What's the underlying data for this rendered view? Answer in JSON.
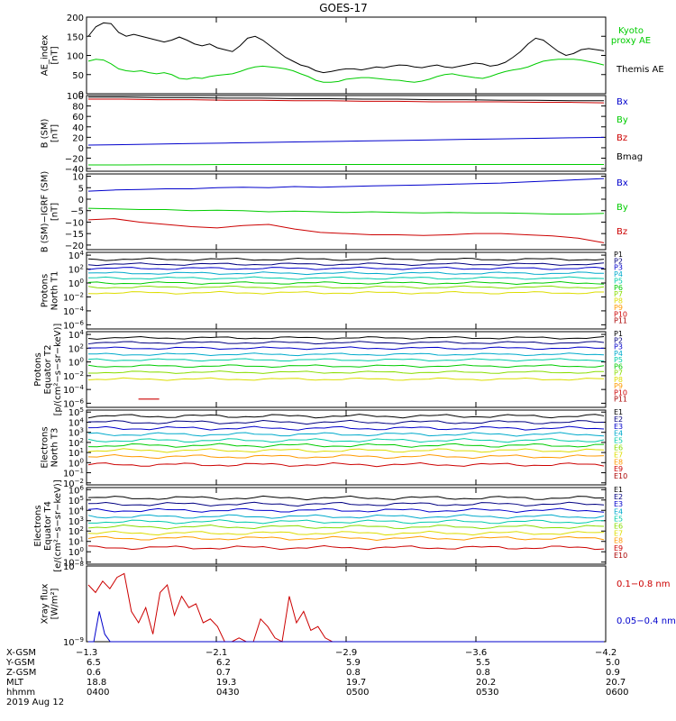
{
  "title": "GOES-17",
  "colors": {
    "black": "#000000",
    "green": "#00cc00",
    "blue": "#0000cc",
    "red": "#cc0000",
    "navy": "#000080",
    "cyan": "#00aacc",
    "teal": "#00ccaa",
    "lime": "#88dd00",
    "yellow": "#dddd00",
    "orange": "#ff9900",
    "darkred": "#aa0000"
  },
  "panels": [
    {
      "id": "ae",
      "ylabel": [
        "AE_index",
        "[nT]"
      ],
      "ticks": [
        "200",
        "150",
        "100",
        "50",
        "0"
      ],
      "ylim": [
        0,
        200
      ],
      "scale": "linear",
      "legend": [
        {
          "text": "Kyoto",
          "color": "#00cc00"
        },
        {
          "text": "proxy AE",
          "color": "#00cc00"
        },
        {
          "text": "Themis AE",
          "color": "#000000"
        }
      ],
      "series": [
        {
          "color": "#000000",
          "values": [
            150,
            175,
            185,
            183,
            160,
            150,
            155,
            150,
            145,
            140,
            135,
            140,
            148,
            140,
            130,
            125,
            130,
            120,
            115,
            110,
            125,
            145,
            150,
            140,
            125,
            110,
            95,
            85,
            75,
            70,
            60,
            55,
            58,
            62,
            65,
            65,
            62,
            66,
            70,
            68,
            72,
            75,
            74,
            70,
            68,
            72,
            75,
            70,
            68,
            72,
            76,
            80,
            78,
            72,
            75,
            82,
            95,
            110,
            130,
            145,
            140,
            125,
            110,
            100,
            105,
            115,
            118,
            115,
            112
          ]
        },
        {
          "color": "#00cc00",
          "values": [
            85,
            90,
            88,
            78,
            65,
            60,
            58,
            60,
            55,
            52,
            55,
            50,
            40,
            38,
            42,
            40,
            45,
            48,
            50,
            52,
            58,
            65,
            70,
            72,
            70,
            68,
            65,
            60,
            52,
            45,
            35,
            30,
            30,
            32,
            38,
            40,
            42,
            42,
            40,
            38,
            36,
            35,
            32,
            30,
            33,
            38,
            45,
            50,
            52,
            48,
            45,
            42,
            40,
            45,
            52,
            58,
            62,
            65,
            70,
            78,
            85,
            88,
            90,
            90,
            90,
            88,
            84,
            80,
            75
          ]
        }
      ]
    },
    {
      "id": "bsm",
      "ylabel": [
        "B (SM)",
        "[nT]"
      ],
      "ticks": [
        "100",
        "80",
        "60",
        "40",
        "20",
        "0",
        "−20",
        "−40"
      ],
      "ylim": [
        -45,
        100
      ],
      "scale": "linear",
      "legend": [
        {
          "text": "Bx",
          "color": "#0000cc"
        },
        {
          "text": "By",
          "color": "#00cc00"
        },
        {
          "text": "Bz",
          "color": "#cc0000"
        },
        {
          "text": "Bmag",
          "color": "#000000"
        }
      ],
      "series": [
        {
          "color": "#000000",
          "values": [
            97,
            97,
            96,
            96,
            95,
            95,
            94,
            94,
            93,
            93,
            92,
            92,
            91,
            91,
            90,
            90
          ]
        },
        {
          "color": "#cc0000",
          "values": [
            93,
            93,
            92,
            92,
            91,
            91,
            90,
            90,
            89,
            89,
            88,
            88,
            88,
            87,
            87,
            86
          ]
        },
        {
          "color": "#0000cc",
          "values": [
            5,
            6,
            7,
            8,
            9,
            10,
            11,
            12,
            13,
            14,
            15,
            16,
            17,
            18,
            19,
            20
          ]
        },
        {
          "color": "#00cc00",
          "values": [
            -33,
            -33,
            -32.5,
            -32.5,
            -32,
            -32,
            -32,
            -32,
            -32,
            -32,
            -32,
            -32,
            -32,
            -32,
            -32,
            -32
          ]
        }
      ]
    },
    {
      "id": "bigrf",
      "ylabel": [
        "B (SM)−IGRF (SM)",
        "[nT]"
      ],
      "ticks": [
        "10",
        "5",
        "0",
        "−5",
        "−10",
        "−15",
        "−20"
      ],
      "ylim": [
        -22,
        11
      ],
      "scale": "linear",
      "legend": [
        {
          "text": "Bx",
          "color": "#0000cc"
        },
        {
          "text": "By",
          "color": "#00cc00"
        },
        {
          "text": "Bz",
          "color": "#cc0000"
        }
      ],
      "series": [
        {
          "color": "#0000cc",
          "values": [
            3.5,
            4,
            4.2,
            4.5,
            4.5,
            5,
            5.2,
            5,
            5.5,
            5.2,
            5.5,
            5.8,
            6,
            6.2,
            6.5,
            6.8,
            7,
            7.5,
            8,
            8.5,
            9
          ]
        },
        {
          "color": "#00cc00",
          "values": [
            -4,
            -4.2,
            -4.5,
            -4.5,
            -5,
            -4.8,
            -5,
            -5.5,
            -5.2,
            -5.5,
            -5.8,
            -5.5,
            -5.8,
            -6,
            -5.8,
            -6,
            -6,
            -6.2,
            -6.5,
            -6.5,
            -6.2
          ]
        },
        {
          "color": "#cc0000",
          "values": [
            -9,
            -8.5,
            -10,
            -11,
            -12,
            -12.5,
            -11.5,
            -11,
            -13,
            -14.5,
            -15,
            -15.5,
            -15.5,
            -15.8,
            -15.5,
            -15,
            -15,
            -15.5,
            -16,
            -17,
            -19
          ]
        }
      ]
    },
    {
      "id": "pnt1",
      "ylabel": [
        "Protons",
        "North T1"
      ],
      "ticks": [
        {
          "b": "10",
          "e": "4",
          "v": 4
        },
        {
          "b": "10",
          "e": "2",
          "v": 2
        },
        {
          "b": "10",
          "e": "0",
          "v": 0
        },
        {
          "b": "10",
          "e": "−2",
          "v": -2
        },
        {
          "b": "10",
          "e": "−4",
          "v": -4
        },
        {
          "b": "10",
          "e": "−6",
          "v": -6
        }
      ],
      "ylim": [
        -6.6,
        4.4
      ],
      "scale": "log",
      "legend": [
        {
          "text": "P1",
          "color": "#000000"
        },
        {
          "text": "P2",
          "color": "#000080"
        },
        {
          "text": "P3",
          "color": "#0000cc"
        },
        {
          "text": "P4",
          "color": "#00aacc"
        },
        {
          "text": "P5",
          "color": "#00ccaa"
        },
        {
          "text": "P6",
          "color": "#00cc00"
        },
        {
          "text": "P7",
          "color": "#88dd00"
        },
        {
          "text": "P8",
          "color": "#dddd00"
        },
        {
          "text": "P9",
          "color": "#ff9900"
        },
        {
          "text": "P10",
          "color": "#cc0000"
        },
        {
          "text": "P11",
          "color": "#aa0000"
        }
      ],
      "series": [
        {
          "color": "#000000",
          "level": 3.4
        },
        {
          "color": "#000080",
          "level": 2.7
        },
        {
          "color": "#0000cc",
          "level": 2.1
        },
        {
          "color": "#00aacc",
          "level": 1.4
        },
        {
          "color": "#00ccaa",
          "level": 0.7
        },
        {
          "color": "#00cc00",
          "level": 0.0
        },
        {
          "color": "#88dd00",
          "level": -0.6
        },
        {
          "color": "#dddd00",
          "level": -1.4
        }
      ]
    },
    {
      "id": "pet2",
      "ylabel": [
        "Protons",
        "Equator T2",
        "[p/(cm²−s−sr−keV)]"
      ],
      "ticks": [
        {
          "b": "10",
          "e": "4",
          "v": 4
        },
        {
          "b": "10",
          "e": "2",
          "v": 2
        },
        {
          "b": "10",
          "e": "0",
          "v": 0
        },
        {
          "b": "10",
          "e": "−2",
          "v": -2
        },
        {
          "b": "10",
          "e": "−4",
          "v": -4
        },
        {
          "b": "10",
          "e": "−6",
          "v": -6
        }
      ],
      "ylim": [
        -6.6,
        4.4
      ],
      "scale": "log",
      "legend": [
        {
          "text": "P1",
          "color": "#000000"
        },
        {
          "text": "P2",
          "color": "#000080"
        },
        {
          "text": "P3",
          "color": "#0000cc"
        },
        {
          "text": "P4",
          "color": "#00aacc"
        },
        {
          "text": "P5",
          "color": "#00ccaa"
        },
        {
          "text": "P6",
          "color": "#00cc00"
        },
        {
          "text": "P7",
          "color": "#88dd00"
        },
        {
          "text": "P8",
          "color": "#dddd00"
        },
        {
          "text": "P9",
          "color": "#ff9900"
        },
        {
          "text": "P10",
          "color": "#cc0000"
        },
        {
          "text": "P11",
          "color": "#aa0000"
        }
      ],
      "series": [
        {
          "color": "#000000",
          "level": 3.5
        },
        {
          "color": "#000080",
          "level": 2.8
        },
        {
          "color": "#0000cc",
          "level": 2.0
        },
        {
          "color": "#00aacc",
          "level": 1.1
        },
        {
          "color": "#00ccaa",
          "level": 0.3
        },
        {
          "color": "#00cc00",
          "level": -0.6
        },
        {
          "color": "#88dd00",
          "level": -1.5
        },
        {
          "color": "#dddd00",
          "level": -2.5
        }
      ],
      "segments": [
        {
          "color": "#cc0000",
          "x0": 0.1,
          "x1": 0.14,
          "level": -5.4
        }
      ]
    },
    {
      "id": "ent3",
      "ylabel": [
        "Electrons",
        "North T3"
      ],
      "ticks": [
        {
          "b": "10",
          "e": "5",
          "v": 5
        },
        {
          "b": "10",
          "e": "4",
          "v": 4
        },
        {
          "b": "10",
          "e": "3",
          "v": 3
        },
        {
          "b": "10",
          "e": "2",
          "v": 2
        },
        {
          "b": "10",
          "e": "1",
          "v": 1
        },
        {
          "b": "10",
          "e": "0",
          "v": 0
        },
        {
          "b": "10",
          "e": "−1",
          "v": -1
        },
        {
          "b": "10",
          "e": "−2",
          "v": -2
        }
      ],
      "ylim": [
        -2.2,
        5.2
      ],
      "scale": "log",
      "legend": [
        {
          "text": "E1",
          "color": "#000000"
        },
        {
          "text": "E2",
          "color": "#000080"
        },
        {
          "text": "E3",
          "color": "#0000cc"
        },
        {
          "text": "E4",
          "color": "#00aacc"
        },
        {
          "text": "E5",
          "color": "#00ccaa"
        },
        {
          "text": "E6",
          "color": "#88dd00"
        },
        {
          "text": "E7",
          "color": "#dddd00"
        },
        {
          "text": "E8",
          "color": "#ff9900"
        },
        {
          "text": "E9",
          "color": "#cc0000"
        },
        {
          "text": "E10",
          "color": "#aa0000"
        }
      ],
      "series": [
        {
          "color": "#000000",
          "level": 4.6
        },
        {
          "color": "#000080",
          "level": 4.0
        },
        {
          "color": "#0000cc",
          "level": 3.4
        },
        {
          "color": "#00aacc",
          "level": 2.8
        },
        {
          "color": "#00ccaa",
          "level": 2.2
        },
        {
          "color": "#00cc00",
          "level": 1.7
        },
        {
          "color": "#dddd00",
          "level": 1.2
        },
        {
          "color": "#ff9900",
          "level": 0.6
        },
        {
          "color": "#cc0000",
          "level": -0.2
        }
      ]
    },
    {
      "id": "eet4",
      "ylabel": [
        "Electrons",
        "Equator T4",
        "[e/(cm²−s−sr−keV)]"
      ],
      "ticks": [
        {
          "b": "10",
          "e": "6",
          "v": 6
        },
        {
          "b": "10",
          "e": "5",
          "v": 5
        },
        {
          "b": "10",
          "e": "4",
          "v": 4
        },
        {
          "b": "10",
          "e": "3",
          "v": 3
        },
        {
          "b": "10",
          "e": "2",
          "v": 2
        },
        {
          "b": "10",
          "e": "1",
          "v": 1
        },
        {
          "b": "10",
          "e": "0",
          "v": 0
        },
        {
          "b": "10",
          "e": "−1",
          "v": -1
        }
      ],
      "ylim": [
        -1.2,
        6.2
      ],
      "scale": "log",
      "legend": [
        {
          "text": "E1",
          "color": "#000000"
        },
        {
          "text": "E2",
          "color": "#000080"
        },
        {
          "text": "E3",
          "color": "#0000cc"
        },
        {
          "text": "E4",
          "color": "#00aacc"
        },
        {
          "text": "E5",
          "color": "#00ccaa"
        },
        {
          "text": "E6",
          "color": "#88dd00"
        },
        {
          "text": "E7",
          "color": "#dddd00"
        },
        {
          "text": "E8",
          "color": "#ff9900"
        },
        {
          "text": "E9",
          "color": "#cc0000"
        },
        {
          "text": "E10",
          "color": "#aa0000"
        }
      ],
      "series": [
        {
          "color": "#000000",
          "level": 5.2
        },
        {
          "color": "#000080",
          "level": 4.6
        },
        {
          "color": "#0000cc",
          "level": 4.0
        },
        {
          "color": "#00aacc",
          "level": 3.4
        },
        {
          "color": "#00ccaa",
          "level": 2.9
        },
        {
          "color": "#88dd00",
          "level": 2.4
        },
        {
          "color": "#dddd00",
          "level": 1.8
        },
        {
          "color": "#ff9900",
          "level": 1.3
        },
        {
          "color": "#cc0000",
          "level": 0.4
        }
      ]
    },
    {
      "id": "xray",
      "ylabel": [
        "Xray flux",
        "[W/m²]"
      ],
      "ticks": [
        {
          "b": "10",
          "e": "−8",
          "v": -8
        },
        {
          "b": "10",
          "e": "−9",
          "v": -9
        }
      ],
      "ylim": [
        -9.0,
        -8.0
      ],
      "scale": "log",
      "legend": [
        {
          "text": "0.1−0.8 nm",
          "color": "#cc0000"
        },
        {
          "text": "0.05−0.4 nm",
          "color": "#0000cc"
        }
      ]
    }
  ],
  "xaxis": {
    "row_labels": [
      "X-GSM",
      "Y-GSM",
      "Z-GSM",
      "MLT",
      "hhmm",
      "2019 Aug 12"
    ],
    "columns": [
      {
        "x": "−1.3",
        "y": "6.5",
        "z": "0.6",
        "mlt": "18.8",
        "hhmm": "0400"
      },
      {
        "x": "−2.1",
        "y": "6.2",
        "z": "0.7",
        "mlt": "19.3",
        "hhmm": "0430"
      },
      {
        "x": "−2.9",
        "y": "5.9",
        "z": "0.8",
        "mlt": "19.7",
        "hhmm": "0500"
      },
      {
        "x": "−3.6",
        "y": "5.5",
        "z": "0.8",
        "mlt": "20.2",
        "hhmm": "0530"
      },
      {
        "x": "−4.2",
        "y": "5.0",
        "z": "0.9",
        "mlt": "20.7",
        "hhmm": "0600"
      }
    ]
  },
  "chart_data": {
    "type": "line",
    "title": "GOES-17",
    "x_range": [
      "0400",
      "0600"
    ],
    "xlabel": "hhmm",
    "panels": [
      "AE_index [nT]",
      "B (SM) [nT]",
      "B (SM)−IGRF (SM) [nT]",
      "Protons North T1",
      "Protons Equator T2",
      "Electrons North T3",
      "Electrons Equator T4",
      "Xray flux [W/m²]"
    ],
    "xray": {
      "red_values": [
        -8.25,
        -8.35,
        -8.2,
        -8.3,
        -8.15,
        -8.1,
        -8.6,
        -8.75,
        -8.55,
        -8.9,
        -8.35,
        -8.25,
        -8.65,
        -8.4,
        -8.55,
        -8.5,
        -8.75,
        -8.7,
        -8.8,
        -9.0,
        -9.0,
        -8.95,
        -9.0,
        -9.0,
        -8.7,
        -8.8,
        -8.95,
        -9.0,
        -8.4,
        -8.75,
        -8.6,
        -8.85,
        -8.8,
        -8.95,
        -9.0
      ],
      "blue_values": [
        -9.0,
        -9.0,
        -8.6,
        -8.9,
        -9.0,
        -9.0,
        -9.0,
        -9.0,
        -9.0,
        -9.0,
        -9.0,
        -9.0,
        -9.0,
        -9.0,
        -9.0,
        -9.0,
        -9.0,
        -9.0,
        -9.0,
        -9.0
      ],
      "red_span": [
        0.0,
        0.47
      ],
      "blue_span": [
        0.0,
        0.2
      ]
    }
  }
}
